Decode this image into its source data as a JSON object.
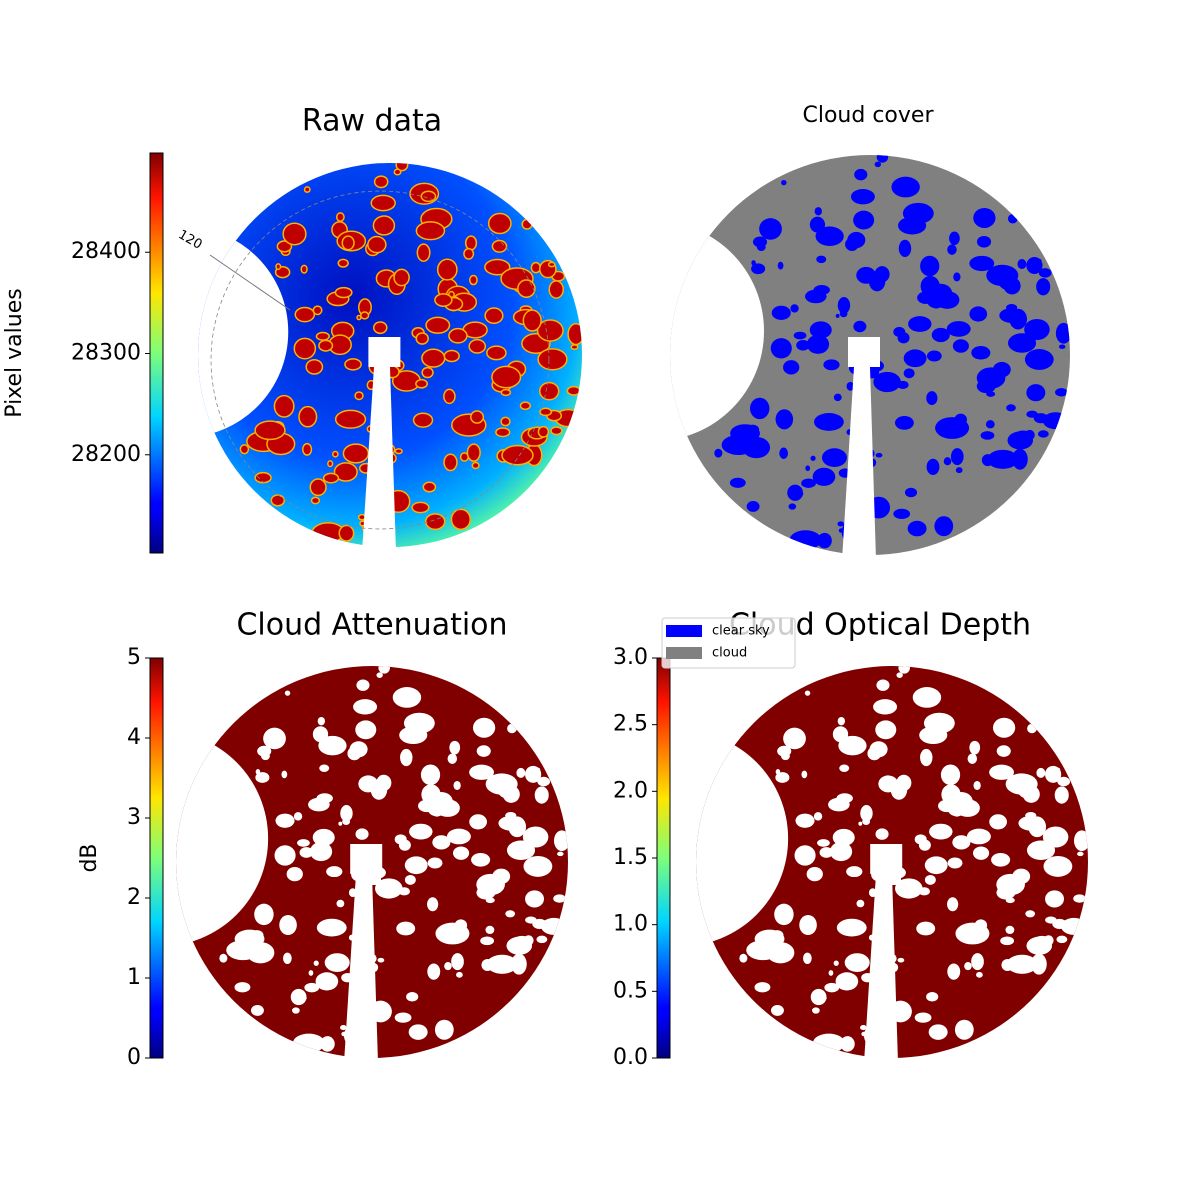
{
  "chart_data": [
    {
      "type": "image",
      "title": "Raw data",
      "colorbar_label": "Pixel values",
      "colormap": "jet",
      "clim": [
        28103,
        28498
      ],
      "cticks": [
        28200,
        28300,
        28400
      ],
      "annotation": "120"
    },
    {
      "type": "image",
      "title": "Cloud cover",
      "series": [
        {
          "name": "clear sky",
          "color": "#0000ff"
        },
        {
          "name": "cloud",
          "color": "#808080"
        }
      ]
    },
    {
      "type": "image",
      "title": "Cloud Attenuation",
      "colorbar_label": "dB",
      "colormap": "jet",
      "color": "#800000",
      "clim": [
        0,
        5
      ],
      "cticks": [
        0,
        1,
        2,
        3,
        4,
        5
      ]
    },
    {
      "type": "image",
      "title": "Cloud Optical Depth",
      "colormap": "jet",
      "color": "#800000",
      "clim": [
        0,
        3
      ],
      "cticks": [
        {
          "value": 0,
          "label": "0.0"
        },
        0.5,
        {
          "value": 1,
          "label": "1.0"
        },
        1.5,
        {
          "value": 2,
          "label": "2.0"
        },
        2.5,
        {
          "value": 3,
          "label": "3.0"
        }
      ]
    }
  ]
}
